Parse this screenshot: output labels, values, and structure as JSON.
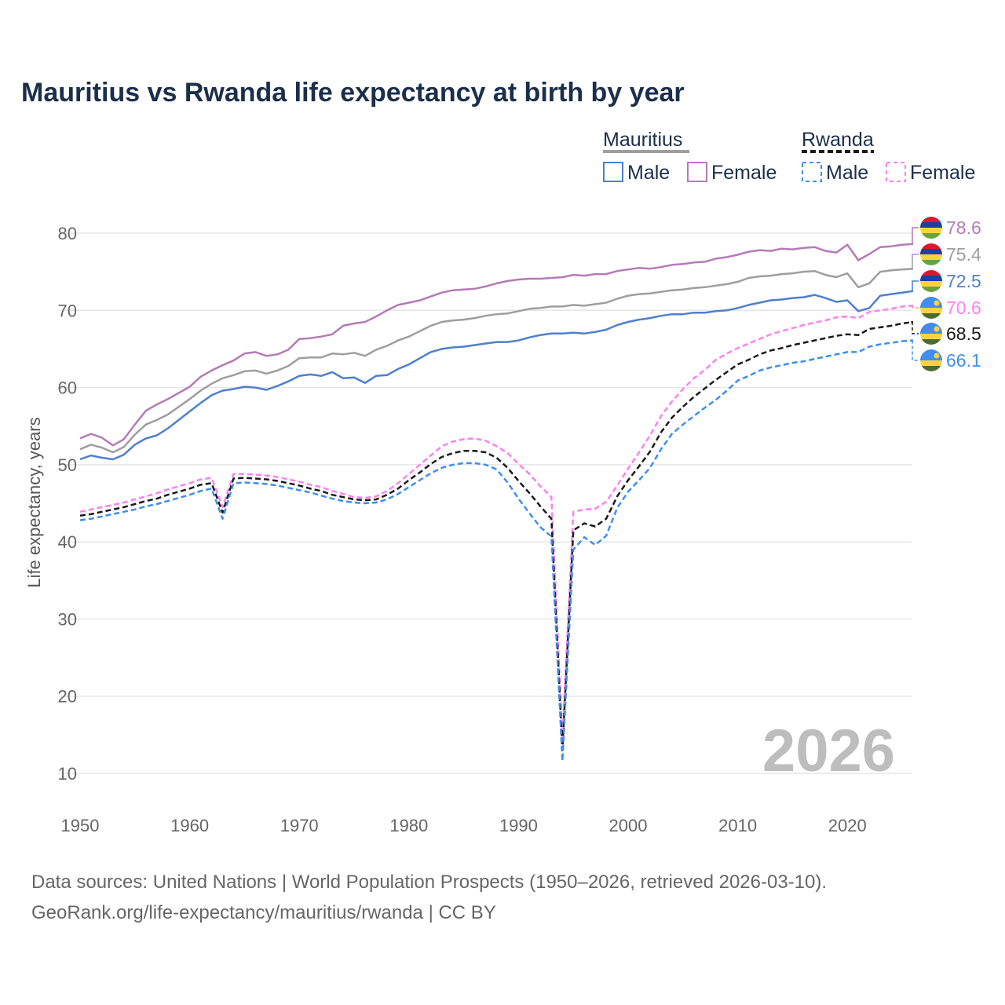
{
  "title": "Mauritius vs Rwanda life expectancy at birth by year",
  "legend": {
    "groups": [
      {
        "name": "Mauritius",
        "items": [
          "Male",
          "Female"
        ]
      },
      {
        "name": "Rwanda",
        "items": [
          "Male",
          "Female"
        ]
      }
    ]
  },
  "year_watermark": "2026",
  "source_line1": "Data sources: United Nations | World Population Prospects (1950–2026, retrieved 2026-03-10).",
  "source_line2": "GeoRank.org/life-expectancy/mauritius/rwanda | CC BY",
  "chart_data": {
    "type": "line",
    "title": "Mauritius vs Rwanda life expectancy at birth by year",
    "xlabel": "",
    "ylabel": "Life expectancy, years",
    "xlim": [
      1950,
      2026
    ],
    "ylim": [
      10,
      80
    ],
    "xticks": [
      1950,
      1960,
      1970,
      1980,
      1990,
      2000,
      2010,
      2020
    ],
    "yticks": [
      10,
      20,
      30,
      40,
      50,
      60,
      70,
      80
    ],
    "grid": true,
    "legend_placement": "top-right",
    "x_start": 1950,
    "series": [
      {
        "name": "Mauritius Female",
        "country": "Mauritius",
        "flag": "mauritius",
        "color": "#b57ab8",
        "dashed": false,
        "end_label": "78.6",
        "values": [
          53.4,
          54,
          53.5,
          52.5,
          53.3,
          55.2,
          57,
          57.8,
          58.5,
          59.3,
          60.1,
          61.4,
          62.2,
          62.9,
          63.5,
          64.4,
          64.6,
          64.1,
          64.3,
          64.9,
          66.3,
          66.4,
          66.6,
          66.9,
          68,
          68.3,
          68.5,
          69.2,
          70,
          70.7,
          71,
          71.3,
          71.8,
          72.3,
          72.6,
          72.7,
          72.8,
          73.1,
          73.5,
          73.8,
          74,
          74.1,
          74.1,
          74.2,
          74.3,
          74.6,
          74.5,
          74.7,
          74.7,
          75.1,
          75.3,
          75.5,
          75.4,
          75.6,
          75.9,
          76,
          76.2,
          76.3,
          76.7,
          76.9,
          77.2,
          77.6,
          77.8,
          77.7,
          78,
          77.9,
          78.1,
          78.2,
          77.7,
          77.5,
          78.5,
          76.5,
          77.3,
          78.2,
          78.3,
          78.5,
          78.6
        ]
      },
      {
        "name": "Mauritius",
        "country": "Mauritius",
        "flag": "mauritius",
        "color": "#9e9e9e",
        "dashed": false,
        "end_label": "75.4",
        "values": [
          52,
          52.6,
          52.2,
          51.6,
          52.3,
          53.9,
          55.2,
          55.8,
          56.5,
          57.5,
          58.5,
          59.6,
          60.5,
          61.2,
          61.6,
          62.1,
          62.2,
          61.8,
          62.2,
          62.8,
          63.8,
          63.9,
          63.9,
          64.4,
          64.3,
          64.5,
          64.1,
          64.9,
          65.4,
          66.1,
          66.6,
          67.3,
          68,
          68.5,
          68.7,
          68.8,
          69,
          69.3,
          69.5,
          69.6,
          69.9,
          70.2,
          70.3,
          70.5,
          70.5,
          70.7,
          70.6,
          70.8,
          71,
          71.5,
          71.9,
          72.1,
          72.2,
          72.4,
          72.6,
          72.7,
          72.9,
          73,
          73.2,
          73.4,
          73.7,
          74.2,
          74.4,
          74.5,
          74.7,
          74.8,
          75,
          75.1,
          74.6,
          74.3,
          74.8,
          73,
          73.5,
          75,
          75.2,
          75.3,
          75.4
        ]
      },
      {
        "name": "Mauritius Male",
        "country": "Mauritius",
        "flag": "mauritius",
        "color": "#4f7fcf",
        "dashed": false,
        "end_label": "72.5",
        "values": [
          50.7,
          51.2,
          50.9,
          50.7,
          51.3,
          52.6,
          53.4,
          53.8,
          54.7,
          55.8,
          56.9,
          58,
          59,
          59.6,
          59.8,
          60.1,
          60,
          59.7,
          60.2,
          60.8,
          61.5,
          61.7,
          61.5,
          62,
          61.2,
          61.3,
          60.6,
          61.5,
          61.6,
          62.4,
          63,
          63.8,
          64.6,
          65,
          65.2,
          65.3,
          65.5,
          65.7,
          65.9,
          65.9,
          66.1,
          66.5,
          66.8,
          67,
          67,
          67.1,
          67,
          67.2,
          67.5,
          68.1,
          68.5,
          68.8,
          69,
          69.3,
          69.5,
          69.5,
          69.7,
          69.7,
          69.9,
          70,
          70.3,
          70.7,
          71,
          71.3,
          71.4,
          71.6,
          71.7,
          72,
          71.6,
          71.1,
          71.3,
          69.9,
          70.3,
          71.9,
          72.1,
          72.3,
          72.5
        ]
      },
      {
        "name": "Rwanda Female",
        "country": "Rwanda",
        "flag": "rwanda",
        "color": "#ff80f0",
        "dashed": true,
        "end_label": "70.6",
        "values": [
          43.9,
          44.2,
          44.5,
          44.8,
          45.1,
          45.5,
          45.9,
          46.3,
          46.8,
          47.2,
          47.6,
          48.1,
          48.3,
          44.5,
          48.8,
          48.8,
          48.7,
          48.6,
          48.4,
          48.1,
          47.8,
          47.4,
          47.1,
          46.6,
          46.2,
          45.8,
          45.7,
          45.9,
          46.6,
          47.6,
          48.8,
          50,
          51.2,
          52.4,
          53,
          53.3,
          53.4,
          53.1,
          52.4,
          51.5,
          50.1,
          48.8,
          47.2,
          45.8,
          14.5,
          43.9,
          44.2,
          44.3,
          45.2,
          47.3,
          49.5,
          51.6,
          53.8,
          56.3,
          58.2,
          59.8,
          61.2,
          62.3,
          63.6,
          64.4,
          65.1,
          65.7,
          66.3,
          66.9,
          67.3,
          67.7,
          68.1,
          68.4,
          68.7,
          69.1,
          69.2,
          69,
          69.8,
          70,
          70.2,
          70.5,
          70.6
        ]
      },
      {
        "name": "Rwanda",
        "country": "Rwanda",
        "flag": "rwanda",
        "color": "#1a1a1a",
        "dashed": true,
        "end_label": "68.5",
        "values": [
          43.4,
          43.6,
          43.9,
          44.2,
          44.5,
          44.9,
          45.3,
          45.6,
          46.1,
          46.5,
          46.9,
          47.4,
          47.6,
          43.8,
          48.2,
          48.3,
          48.2,
          48.1,
          47.9,
          47.6,
          47.3,
          46.9,
          46.6,
          46.1,
          45.8,
          45.5,
          45.4,
          45.5,
          46.1,
          46.9,
          48,
          49,
          50.1,
          51,
          51.5,
          51.8,
          51.8,
          51.6,
          50.9,
          49.6,
          47.9,
          46.3,
          44.6,
          43,
          13,
          41.5,
          42.4,
          42,
          43,
          45.9,
          48,
          49.8,
          51.7,
          54.2,
          56.1,
          57.5,
          58.8,
          59.9,
          61,
          62,
          63,
          63.6,
          64.3,
          64.8,
          65.1,
          65.5,
          65.8,
          66.1,
          66.4,
          66.7,
          66.9,
          66.8,
          67.6,
          67.8,
          68,
          68.3,
          68.5
        ]
      },
      {
        "name": "Rwanda Male",
        "country": "Rwanda",
        "flag": "rwanda",
        "color": "#3d8ef0",
        "dashed": true,
        "end_label": "66.1",
        "values": [
          42.8,
          43,
          43.3,
          43.6,
          43.9,
          44.2,
          44.6,
          44.9,
          45.3,
          45.7,
          46.1,
          46.6,
          46.9,
          43,
          47.6,
          47.7,
          47.6,
          47.5,
          47.3,
          47,
          46.7,
          46.4,
          46,
          45.6,
          45.3,
          45.1,
          45,
          45.1,
          45.5,
          46.2,
          47.1,
          48,
          48.9,
          49.6,
          50,
          50.2,
          50.2,
          50,
          49.4,
          47.7,
          45.6,
          43.7,
          41.9,
          40.7,
          11.6,
          39,
          40.6,
          39.6,
          40.8,
          44.4,
          46.5,
          48,
          49.6,
          52,
          54,
          55.2,
          56.3,
          57.4,
          58.4,
          59.6,
          60.9,
          61.5,
          62.2,
          62.6,
          62.9,
          63.2,
          63.4,
          63.7,
          64,
          64.3,
          64.6,
          64.6,
          65.3,
          65.6,
          65.8,
          66,
          66.1
        ]
      }
    ]
  }
}
